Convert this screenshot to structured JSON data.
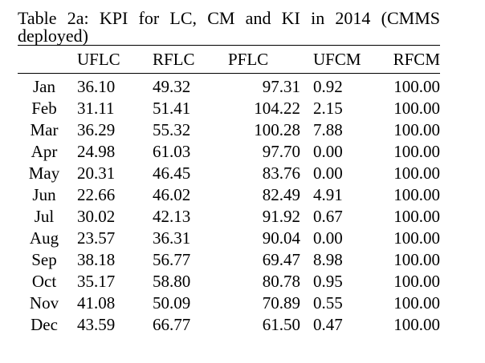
{
  "caption": "Table 2a: KPI for LC, CM and KI in 2014 (CMMS deployed)",
  "columns": [
    "",
    "UFLC",
    "RFLC",
    "PFLC",
    "UFCM",
    "RFCM"
  ],
  "rows": [
    {
      "month": "Jan",
      "uflc": "36.10",
      "rflc": "49.32",
      "pflc": "97.31",
      "ufcm": "0.92",
      "rfcm": "100.00"
    },
    {
      "month": "Feb",
      "uflc": "31.11",
      "rflc": "51.41",
      "pflc": "104.22",
      "ufcm": "2.15",
      "rfcm": "100.00"
    },
    {
      "month": "Mar",
      "uflc": "36.29",
      "rflc": "55.32",
      "pflc": "100.28",
      "ufcm": "7.88",
      "rfcm": "100.00"
    },
    {
      "month": "Apr",
      "uflc": "24.98",
      "rflc": "61.03",
      "pflc": "97.70",
      "ufcm": "0.00",
      "rfcm": "100.00"
    },
    {
      "month": "May",
      "uflc": "20.31",
      "rflc": "46.45",
      "pflc": "83.76",
      "ufcm": "0.00",
      "rfcm": "100.00"
    },
    {
      "month": "Jun",
      "uflc": "22.66",
      "rflc": "46.02",
      "pflc": "82.49",
      "ufcm": "4.91",
      "rfcm": "100.00"
    },
    {
      "month": "Jul",
      "uflc": "30.02",
      "rflc": "42.13",
      "pflc": "91.92",
      "ufcm": "0.67",
      "rfcm": "100.00"
    },
    {
      "month": "Aug",
      "uflc": "23.57",
      "rflc": "36.31",
      "pflc": "90.04",
      "ufcm": "0.00",
      "rfcm": "100.00"
    },
    {
      "month": "Sep",
      "uflc": "38.18",
      "rflc": "56.77",
      "pflc": "69.47",
      "ufcm": "8.98",
      "rfcm": "100.00"
    },
    {
      "month": "Oct",
      "uflc": "35.17",
      "rflc": "58.80",
      "pflc": "80.78",
      "ufcm": "0.95",
      "rfcm": "100.00"
    },
    {
      "month": "Nov",
      "uflc": "41.08",
      "rflc": "50.09",
      "pflc": "70.89",
      "ufcm": "0.55",
      "rfcm": "100.00"
    },
    {
      "month": "Dec",
      "uflc": "43.59",
      "rflc": "66.77",
      "pflc": "61.50",
      "ufcm": "0.47",
      "rfcm": "100.00"
    }
  ]
}
